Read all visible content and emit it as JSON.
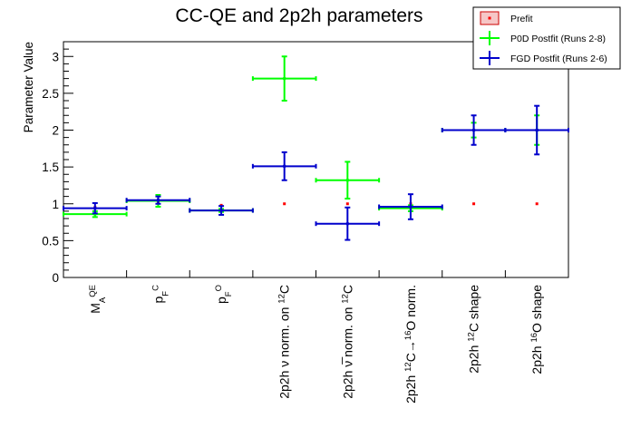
{
  "chart_data": {
    "type": "scatter",
    "title": "CC-QE and 2p2h parameters",
    "xlabel": "",
    "ylabel": "Parameter Value",
    "ylim": [
      0,
      3.2
    ],
    "y_ticks": [
      0,
      0.5,
      1,
      1.5,
      2,
      2.5,
      3
    ],
    "y_tick_labels": [
      "0",
      "0.5",
      "1",
      "1.5",
      "2",
      "2.5",
      "3"
    ],
    "grid": false,
    "legend_position": "top-right",
    "categories": [
      {
        "parts": [
          {
            "t": "M"
          },
          {
            "t": "A",
            "sub": true
          },
          {
            "t": "QE",
            "sup": true
          }
        ]
      },
      {
        "parts": [
          {
            "t": "p"
          },
          {
            "t": "F",
            "sub": true
          },
          {
            "t": "C",
            "sup": true
          }
        ]
      },
      {
        "parts": [
          {
            "t": "p"
          },
          {
            "t": "F",
            "sub": true
          },
          {
            "t": "O",
            "sup": true
          }
        ]
      },
      {
        "parts": [
          {
            "t": "2p2h ν norm. on "
          },
          {
            "t": "12",
            "sup": true
          },
          {
            "t": "C"
          }
        ]
      },
      {
        "parts": [
          {
            "t": "2p2h ν̅ norm. on "
          },
          {
            "t": "12",
            "sup": true
          },
          {
            "t": "C"
          }
        ]
      },
      {
        "parts": [
          {
            "t": "2p2h "
          },
          {
            "t": "12",
            "sup": true
          },
          {
            "t": "C→"
          },
          {
            "t": "16",
            "sup": true
          },
          {
            "t": "O norm."
          }
        ]
      },
      {
        "parts": [
          {
            "t": "2p2h "
          },
          {
            "t": "12",
            "sup": true
          },
          {
            "t": "C shape"
          }
        ]
      },
      {
        "parts": [
          {
            "t": "2p2h "
          },
          {
            "t": "16",
            "sup": true
          },
          {
            "t": "O shape"
          }
        ]
      }
    ],
    "series": [
      {
        "name": "Prefit",
        "color": "#ff0000",
        "marker": "square",
        "values": [
          0.95,
          1.03,
          0.98,
          1.0,
          1.0,
          1.0,
          1.0,
          1.0
        ],
        "errors": [
          0,
          0,
          0,
          0,
          0,
          0,
          0,
          0
        ],
        "xerr": false
      },
      {
        "name": "P0D Postfit (Runs 2-8)",
        "color": "#00ff00",
        "marker": "cross",
        "values": [
          0.86,
          1.04,
          0.91,
          2.7,
          1.32,
          0.94,
          2.0,
          2.0
        ],
        "errors": [
          0.04,
          0.08,
          0.02,
          0.3,
          0.25,
          0.04,
          0.1,
          0.2
        ],
        "xerr": true
      },
      {
        "name": "FGD Postfit (Runs 2-6)",
        "color": "#0000cc",
        "marker": "cross",
        "values": [
          0.94,
          1.05,
          0.91,
          1.51,
          0.73,
          0.96,
          2.0,
          2.0
        ],
        "errors": [
          0.07,
          0.05,
          0.06,
          0.19,
          0.22,
          0.17,
          0.2,
          0.33
        ],
        "xerr": true
      }
    ]
  }
}
